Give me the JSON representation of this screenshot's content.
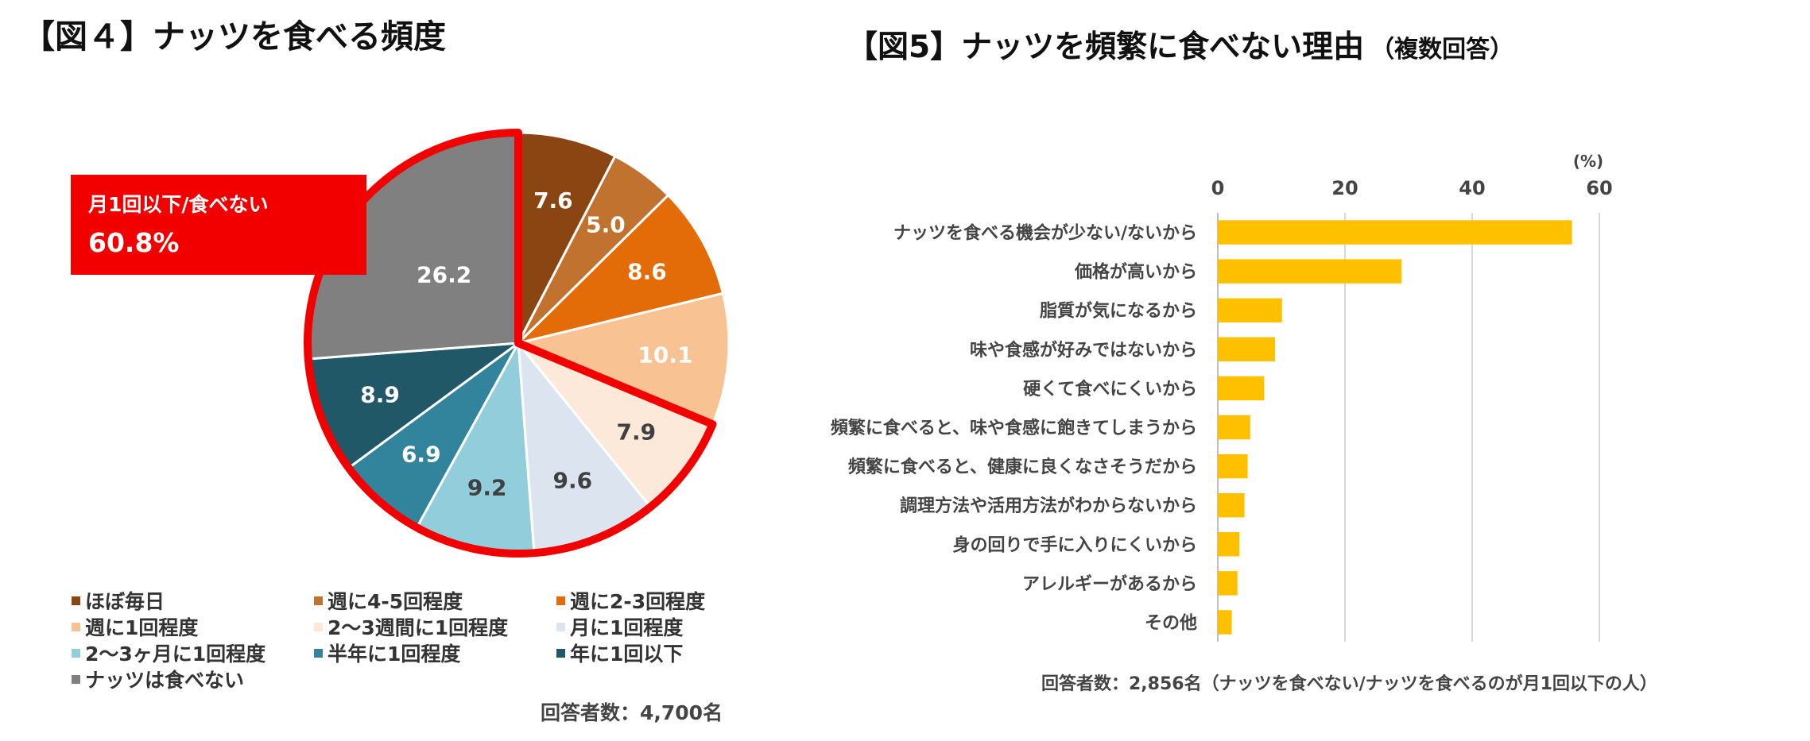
{
  "fig4": {
    "title": "【図４】ナッツを食べる頻度",
    "callout": {
      "label": "月1回以下/食べない",
      "value": "60.8%"
    },
    "note": "回答者数：4,700名"
  },
  "fig5": {
    "title": "【図5】ナッツを頻繁に食べない理由",
    "subtitle": "（複数回答）",
    "note": "回答者数：2,856名（ナッツを食べない/ナッツを食べるのが月1回以下の人）"
  },
  "chart_data": [
    {
      "type": "pie",
      "title": "【図４】ナッツを食べる頻度",
      "categories": [
        "ほぼ毎日",
        "週に4-5回程度",
        "週に2-3回程度",
        "週に1回程度",
        "2～3週間に1回程度",
        "月に1回程度",
        "2～3ヶ月に1回程度",
        "半年に1回程度",
        "年に1回以下",
        "ナッツは食べない"
      ],
      "values": [
        7.6,
        5.0,
        8.6,
        10.1,
        7.9,
        9.6,
        9.2,
        6.9,
        8.9,
        26.2
      ],
      "labels": [
        "7.6",
        "5.0",
        "8.6",
        "10.1",
        "7.9",
        "9.6",
        "9.2",
        "6.9",
        "8.9",
        "26.2"
      ],
      "colors": [
        "#8b4513",
        "#c0722e",
        "#e36c09",
        "#f9c293",
        "#fde9d9",
        "#dce4f0",
        "#92cddc",
        "#31849b",
        "#215868",
        "#808080"
      ],
      "label_colors": [
        "#ffffff",
        "#ffffff",
        "#ffffff",
        "#ffffff",
        "#404040",
        "#404040",
        "#404040",
        "#ffffff",
        "#ffffff",
        "#ffffff"
      ],
      "highlight_range": [
        4,
        9
      ],
      "highlight_color": "#f20000"
    },
    {
      "type": "bar",
      "orientation": "horizontal",
      "title": "【図5】ナッツを頻繁に食べない理由",
      "categories": [
        "ナッツを食べる機会が少ない/ないから",
        "価格が高いから",
        "脂質が気になるから",
        "味や食感が好みではないから",
        "硬くて食べにくいから",
        "頻繁に食べると、味や食感に飽きてしまうから",
        "頻繁に食べると、健康に良くなさそうだから",
        "調理方法や活用方法がわからないから",
        "身の回りで手に入りにくいから",
        "アレルギーがあるから",
        "その他"
      ],
      "values": [
        55.7,
        28.9,
        10.1,
        9.0,
        7.3,
        5.1,
        4.7,
        4.2,
        3.4,
        3.1,
        2.2
      ],
      "xlim": [
        0,
        60
      ],
      "ticks": [
        "0",
        "20",
        "40",
        "60"
      ],
      "unit": "(%)",
      "grid": true,
      "bar_color": "#ffc000"
    }
  ]
}
